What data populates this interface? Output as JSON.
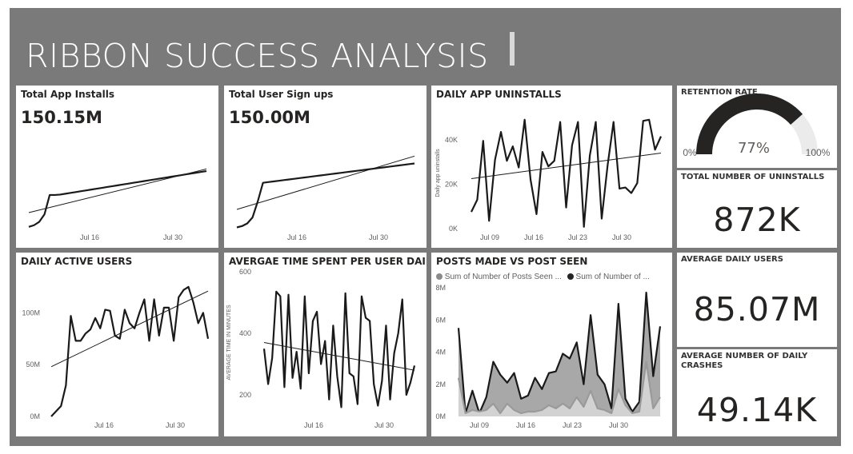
{
  "dashboard": {
    "title": "RIBBON SUCCESS ANALYSIS"
  },
  "cards": {
    "installs": {
      "title": "Total App Installs",
      "value": "150.15M"
    },
    "signups": {
      "title": "Total User Sign ups",
      "value": "150.00M"
    },
    "uninstalls": {
      "title": "DAILY APP UNINSTALLS"
    },
    "retention": {
      "title": "RETENTION RATE",
      "value": "77%",
      "min_label": "0%",
      "max_label": "100%"
    },
    "total_uninstalls": {
      "title": "TOTAL NUMBER OF UNINSTALLS",
      "value": "872K"
    },
    "dau": {
      "title": "DAILY ACTIVE USERS"
    },
    "avg_time": {
      "title": "AVERGAE TIME SPENT PER USER DAILY"
    },
    "posts": {
      "title": "POSTS MADE VS POST SEEN",
      "legend": [
        "Sum of Number of Posts Seen ...",
        "Sum of Number of ..."
      ]
    },
    "avg_daily_users": {
      "title": "AVERAGE DAILY USERS",
      "value": "85.07M"
    },
    "avg_crashes": {
      "title": "AVERAGE NUMBER OF DAILY CRASHES",
      "value": "49.14K"
    }
  },
  "colors": {
    "frame": "#7a7a7a",
    "line": "#1a1a1a",
    "gauge_fill": "#252423",
    "gauge_bg": "#ebebeb",
    "area_seen": "#a8a8a8",
    "area_made": "#d2d2d2"
  },
  "chart_data": [
    {
      "id": "installs",
      "type": "line",
      "title": "Total App Installs",
      "x_ticks": [
        "Jul 16",
        "Jul 30"
      ],
      "series": [
        {
          "values": [
            3,
            5,
            9,
            18,
            41,
            41,
            41.5,
            42.5,
            43.5,
            44.5,
            45.5,
            46.5,
            47.5,
            48.5,
            49.5,
            50.5,
            51.5,
            52.5,
            53.5,
            54.5,
            55.5,
            56.5,
            57.5,
            58.5,
            59.5,
            60.5,
            61.5,
            62.5,
            63.5,
            64.5,
            65.5,
            66.5,
            67.5,
            68.5,
            69.5
          ]
        }
      ],
      "trendline": [
        20,
        72
      ],
      "ylim": [
        0,
        100
      ]
    },
    {
      "id": "signups",
      "type": "line",
      "title": "Total User Sign ups",
      "x_ticks": [
        "Jul 16",
        "Jul 30"
      ],
      "series": [
        {
          "values": [
            3,
            5,
            9,
            18,
            42,
            70,
            71,
            72,
            73,
            74,
            75,
            76,
            77,
            78,
            79,
            80,
            81,
            82,
            83,
            84,
            85,
            86,
            87,
            88,
            89,
            90,
            91,
            92,
            93,
            94,
            95,
            96,
            97,
            98,
            99
          ]
        }
      ],
      "trendline": [
        30,
        110
      ],
      "ylim": [
        0,
        150
      ]
    },
    {
      "id": "uninstalls",
      "type": "line",
      "title": "DAILY APP UNINSTALLS",
      "ylabel": "Daily app uninstalls",
      "y_ticks": [
        "0K",
        "20K",
        "40K"
      ],
      "ylim": [
        0,
        50000
      ],
      "x_ticks": [
        "Jul 09",
        "Jul 16",
        "Jul 23",
        "Jul 30"
      ],
      "series": [
        {
          "values": [
            7500,
            13000,
            39500,
            3500,
            31000,
            43500,
            30500,
            37000,
            27500,
            49000,
            22000,
            6500,
            34500,
            28000,
            30500,
            48000,
            9500,
            37500,
            48000,
            800,
            33000,
            48000,
            4500,
            28500,
            48000,
            18000,
            18500,
            16000,
            20500,
            48500,
            49000,
            35500,
            41500
          ]
        }
      ],
      "trendline": [
        22500,
        34000
      ]
    },
    {
      "id": "dau",
      "type": "line",
      "title": "DAILY ACTIVE USERS",
      "y_ticks": [
        "0M",
        "50M",
        "100M"
      ],
      "ylim": [
        0,
        135
      ],
      "x_ticks": [
        "Jul 16",
        "Jul 30"
      ],
      "series": [
        {
          "values": [
            0,
            5,
            10,
            30,
            97,
            73,
            73,
            80,
            84,
            95,
            85,
            103,
            102,
            78,
            75,
            103,
            90,
            85,
            100,
            113,
            73,
            113,
            78,
            105,
            105,
            73,
            115,
            122,
            125,
            110,
            90,
            100,
            75
          ]
        }
      ],
      "trendline": [
        48,
        121
      ]
    },
    {
      "id": "avg_time",
      "type": "line",
      "title": "AVERGAE TIME SPENT PER USER DAILY",
      "ylabel": "AVERAGE TIME IN MINUTES",
      "y_ticks": [
        "200",
        "400",
        "600"
      ],
      "ylim": [
        130,
        610
      ],
      "x_ticks": [
        "Jul 16",
        "Jul 30"
      ],
      "series": [
        {
          "values": [
            350,
            235,
            320,
            535,
            520,
            225,
            525,
            255,
            340,
            220,
            520,
            270,
            440,
            470,
            300,
            375,
            185,
            425,
            260,
            160,
            530,
            270,
            260,
            170,
            520,
            450,
            440,
            235,
            165,
            245,
            425,
            185,
            335,
            400,
            510,
            200,
            240,
            295
          ]
        }
      ],
      "trendline": [
        370,
        280
      ]
    },
    {
      "id": "posts",
      "type": "area",
      "title": "POSTS MADE VS POST SEEN",
      "y_ticks": [
        "0M",
        "2M",
        "4M",
        "6M",
        "8M"
      ],
      "ylim": [
        0,
        8
      ],
      "x_ticks": [
        "Jul 09",
        "Jul 16",
        "Jul 23",
        "Jul 30"
      ],
      "series": [
        {
          "name": "Sum of Number of Posts Seen ...",
          "values": [
            5.5,
            0.2,
            1.6,
            0.2,
            1.2,
            3.4,
            2.6,
            2.1,
            2.7,
            1.1,
            1.3,
            2.4,
            1.7,
            2.7,
            2.8,
            3.9,
            3.6,
            4.6,
            2.0,
            6.3,
            2.6,
            2.0,
            0.5,
            7.0,
            1.1,
            0.3,
            0.9,
            7.7,
            2.5,
            5.6
          ]
        },
        {
          "name": "Sum of Number of ...",
          "values": [
            2.4,
            0.2,
            0.4,
            0.3,
            0.4,
            0.8,
            0.2,
            0.8,
            0.4,
            0.2,
            0.3,
            0.3,
            0.4,
            0.7,
            0.5,
            0.8,
            0.5,
            1.2,
            0.6,
            1.6,
            0.5,
            0.4,
            0.2,
            1.7,
            0.7,
            0.2,
            0.3,
            3.4,
            0.5,
            1.2
          ]
        }
      ]
    }
  ]
}
